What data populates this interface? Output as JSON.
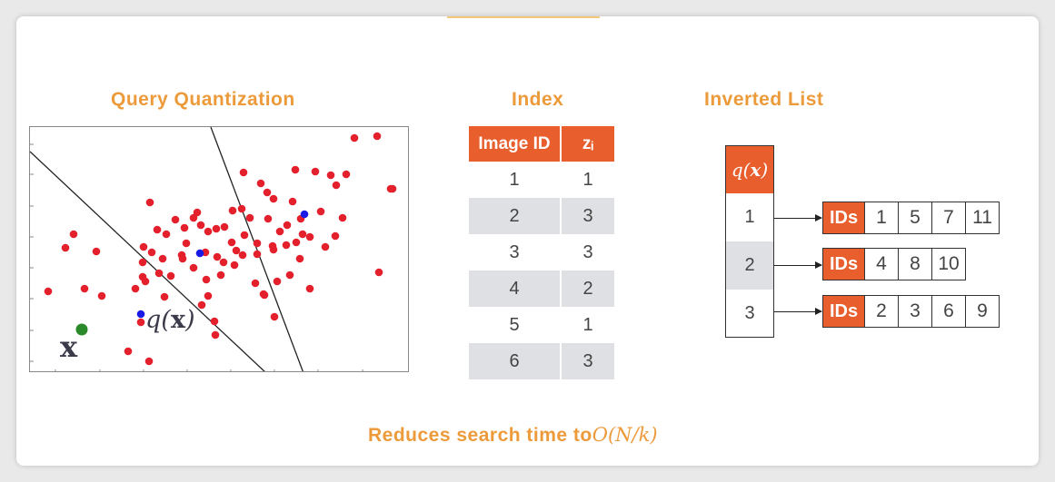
{
  "headings": {
    "query": "Query Quantization",
    "index": "Index",
    "inverted": "Inverted List"
  },
  "plot": {
    "point_label": "x",
    "quantized_label_fn": "q(",
    "quantized_label_var": "x",
    "quantized_label_close": ")",
    "colors": {
      "points": "#e3202b",
      "centroids": "#1a1ae6",
      "query": "#2a8a2a"
    }
  },
  "index_table": {
    "headers": [
      "Image ID",
      "zᵢ"
    ],
    "rows": [
      [
        "1",
        "1"
      ],
      [
        "2",
        "3"
      ],
      [
        "3",
        "3"
      ],
      [
        "4",
        "2"
      ],
      [
        "5",
        "1"
      ],
      [
        "6",
        "3"
      ]
    ]
  },
  "inverted_list": {
    "header_fn": "q(",
    "header_var": "x",
    "header_close": ")",
    "tag": "IDs",
    "rows": [
      {
        "key": "1",
        "ids": [
          "1",
          "5",
          "7",
          "11"
        ]
      },
      {
        "key": "2",
        "ids": [
          "4",
          "8",
          "10"
        ]
      },
      {
        "key": "3",
        "ids": [
          "2",
          "3",
          "6",
          "9"
        ]
      }
    ]
  },
  "footer": {
    "text": "Reduces search time to",
    "math": "O(N/k)"
  },
  "accent_color": "#e85e2d"
}
